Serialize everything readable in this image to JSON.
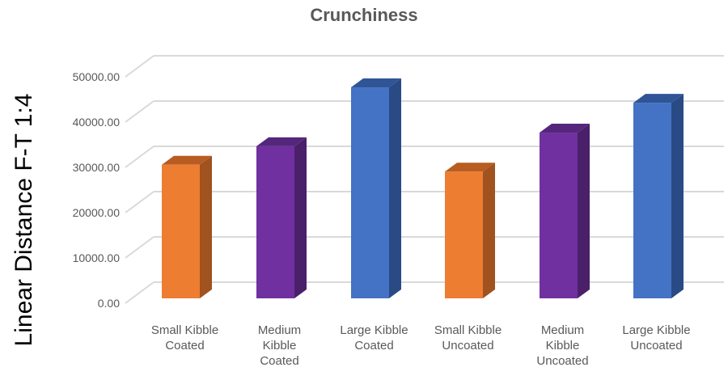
{
  "chart_data": {
    "type": "bar",
    "title": "Crunchiness",
    "xlabel": "",
    "ylabel": "Linear Distance F-T 1:4",
    "ylim": [
      0,
      50000
    ],
    "yticks": [
      "0.00",
      "10000.00",
      "20000.00",
      "30000.00",
      "40000.00",
      "50000.00"
    ],
    "grid": true,
    "style": "3d-column",
    "categories": [
      [
        "Small Kibble",
        "Coated"
      ],
      [
        "Medium",
        "Kibble",
        "Coated"
      ],
      [
        "Large Kibble",
        "Coated"
      ],
      [
        "Small Kibble",
        "Uncoated"
      ],
      [
        "Medium",
        "Kibble",
        "Uncoated"
      ],
      [
        "Large Kibble",
        "Uncoated"
      ]
    ],
    "values": [
      29500,
      33600,
      46600,
      28000,
      36600,
      43200
    ],
    "colors": [
      "#ED7D31",
      "#7030A0",
      "#4472C4",
      "#ED7D31",
      "#7030A0",
      "#4472C4"
    ],
    "side_colors": [
      "#A0521F",
      "#4A206B",
      "#2A4A85",
      "#A0521F",
      "#4A206B",
      "#2A4A85"
    ],
    "top_colors": [
      "#B85C22",
      "#55277C",
      "#2F5597",
      "#B85C22",
      "#55277C",
      "#2F5597"
    ]
  }
}
